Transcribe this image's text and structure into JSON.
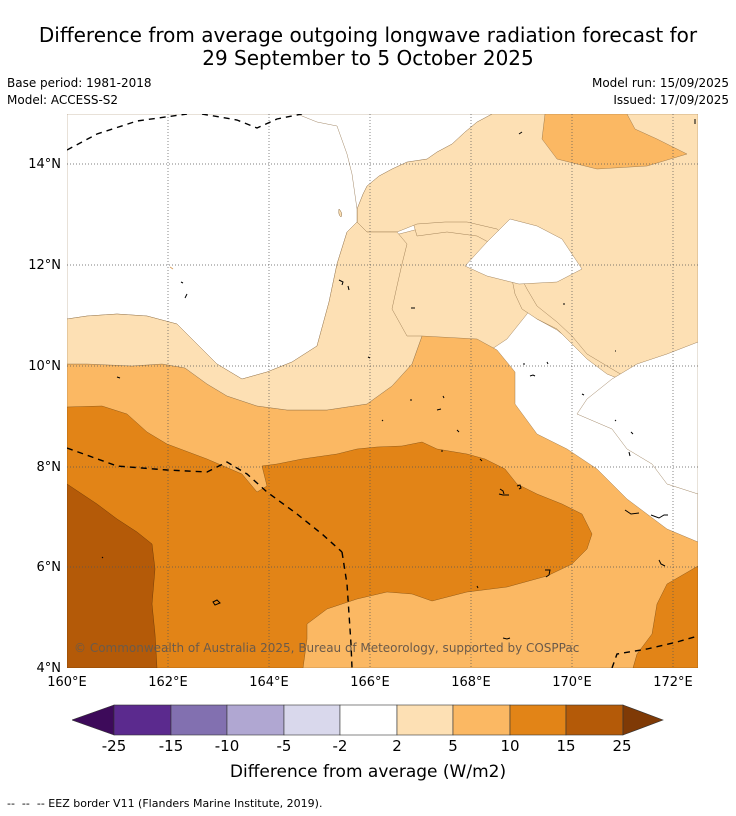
{
  "title": {
    "line1": "Difference from average outgoing longwave radiation forecast for",
    "line2": "29 September to 5 October 2025"
  },
  "meta": {
    "base_period": "Base period: 1981-2018",
    "model": "Model: ACCESS-S2",
    "model_run": "Model run: 15/09/2025",
    "issued": "Issued: 17/09/2025"
  },
  "map": {
    "credit": "© Commonwealth of Australia 2025, Bureau of Meteorology, supported by COSPPac",
    "lat_ticks": [
      "14°N",
      "12°N",
      "10°N",
      "8°N",
      "6°N",
      "4°N"
    ],
    "lon_ticks": [
      "160°E",
      "162°E",
      "164°E",
      "166°E",
      "168°E",
      "170°E",
      "172°E"
    ],
    "border_style": "dashed",
    "gridlines": "dotted"
  },
  "legend": {
    "label": "Difference from average (W/m2)",
    "ticks": [
      "-25",
      "-15",
      "-10",
      "-5",
      "-2",
      "2",
      "5",
      "10",
      "15",
      "25"
    ],
    "colors": [
      "#3d0a5a",
      "#5b2a8e",
      "#8270b0",
      "#b0a7d2",
      "#d9d8ec",
      "#ffffff",
      "#fde0b4",
      "#fbb863",
      "#e28417",
      "#b45a08",
      "#7f3a06"
    ]
  },
  "footnote": "--  --  -- EEZ border V11 (Flanders Marine Institute, 2019)."
}
